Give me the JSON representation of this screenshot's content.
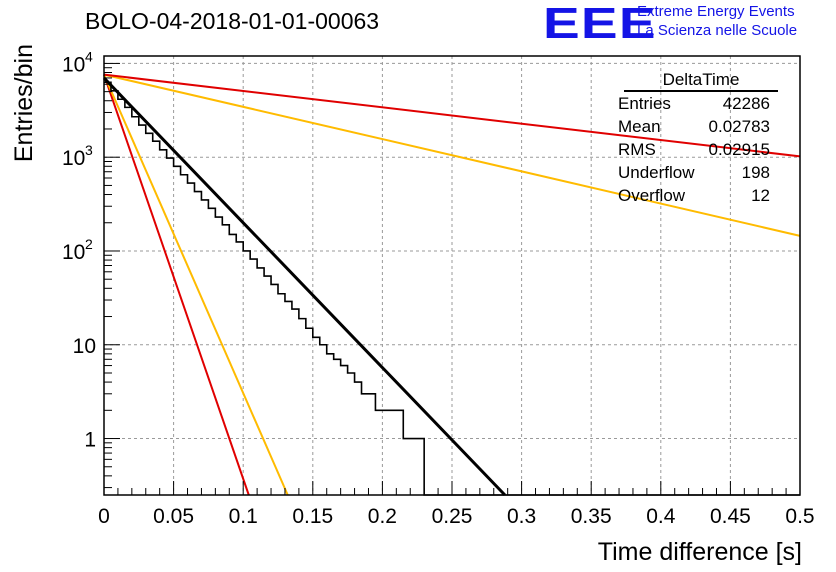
{
  "chart_title": "BOLO-04-2018-01-01-00063",
  "logo": {
    "mark": "EEE",
    "line1": "Extreme Energy Events",
    "line2": "La Scienza nelle Scuole"
  },
  "stats": {
    "header": "DeltaTime",
    "rows": [
      {
        "label": "Entries",
        "value": "42286"
      },
      {
        "label": "Mean",
        "value": "0.02783"
      },
      {
        "label": "RMS",
        "value": "0.02915"
      },
      {
        "label": "Underflow",
        "value": "198"
      },
      {
        "label": "Overflow",
        "value": "12"
      }
    ]
  },
  "colors": {
    "red": "#e00000",
    "orange": "#ffbb00",
    "black": "#000000",
    "grid": "#9a9a9a"
  },
  "chart_data": {
    "type": "histogram",
    "xlabel": "Time difference [s]",
    "ylabel": "Entries/bin",
    "xlim": [
      0,
      0.5
    ],
    "ylim": [
      0.25,
      12000
    ],
    "y_scale": "log",
    "grid": true,
    "x_ticks": [
      {
        "v": 0,
        "label": "0"
      },
      {
        "v": 0.05,
        "label": "0.05"
      },
      {
        "v": 0.1,
        "label": "0.1"
      },
      {
        "v": 0.15,
        "label": "0.15"
      },
      {
        "v": 0.2,
        "label": "0.2"
      },
      {
        "v": 0.25,
        "label": "0.25"
      },
      {
        "v": 0.3,
        "label": "0.3"
      },
      {
        "v": 0.35,
        "label": "0.35"
      },
      {
        "v": 0.4,
        "label": "0.4"
      },
      {
        "v": 0.45,
        "label": "0.45"
      },
      {
        "v": 0.5,
        "label": "0.5"
      }
    ],
    "y_ticks": [
      {
        "v": 1,
        "label": "1"
      },
      {
        "v": 10,
        "label": "10"
      },
      {
        "v": 100,
        "label": "10",
        "sup": "2"
      },
      {
        "v": 1000,
        "label": "10",
        "sup": "3"
      },
      {
        "v": 10000,
        "label": "10",
        "sup": "4"
      }
    ],
    "bin_width": 0.005,
    "histogram_values": [
      6300,
      5100,
      4150,
      3400,
      2700,
      2200,
      1800,
      1480,
      1200,
      980,
      800,
      650,
      530,
      430,
      350,
      285,
      230,
      190,
      150,
      125,
      100,
      82,
      66,
      54,
      44,
      35,
      29,
      24,
      19,
      15,
      12,
      10,
      8,
      7,
      6,
      5,
      4,
      3,
      3,
      2,
      2,
      2,
      2,
      1,
      1,
      1,
      0,
      0,
      0,
      0,
      0,
      0,
      0,
      0,
      0,
      0,
      0,
      0,
      0,
      0,
      0,
      0,
      0,
      0,
      0,
      0,
      0,
      0,
      0,
      0,
      0,
      0,
      0,
      0,
      0,
      0,
      0,
      0,
      0,
      0,
      0,
      0,
      0,
      0,
      0,
      0,
      0,
      0,
      0,
      0,
      0,
      0,
      0,
      0,
      0,
      0,
      0,
      0,
      0,
      0
    ],
    "fits": [
      {
        "color": "red",
        "y0": 7600,
        "y_end": 0.25,
        "x_end": 0.104
      },
      {
        "color": "orange",
        "y0": 7600,
        "y_end": 0.25,
        "x_end": 0.132
      },
      {
        "color": "black",
        "y0": 7000,
        "y_end": 0.25,
        "x_end": 0.288
      },
      {
        "color": "orange",
        "y0": 7600,
        "y_end": 145,
        "x_end": 0.5
      },
      {
        "color": "red",
        "y0": 7600,
        "y_end": 1020,
        "x_end": 0.5
      }
    ]
  }
}
